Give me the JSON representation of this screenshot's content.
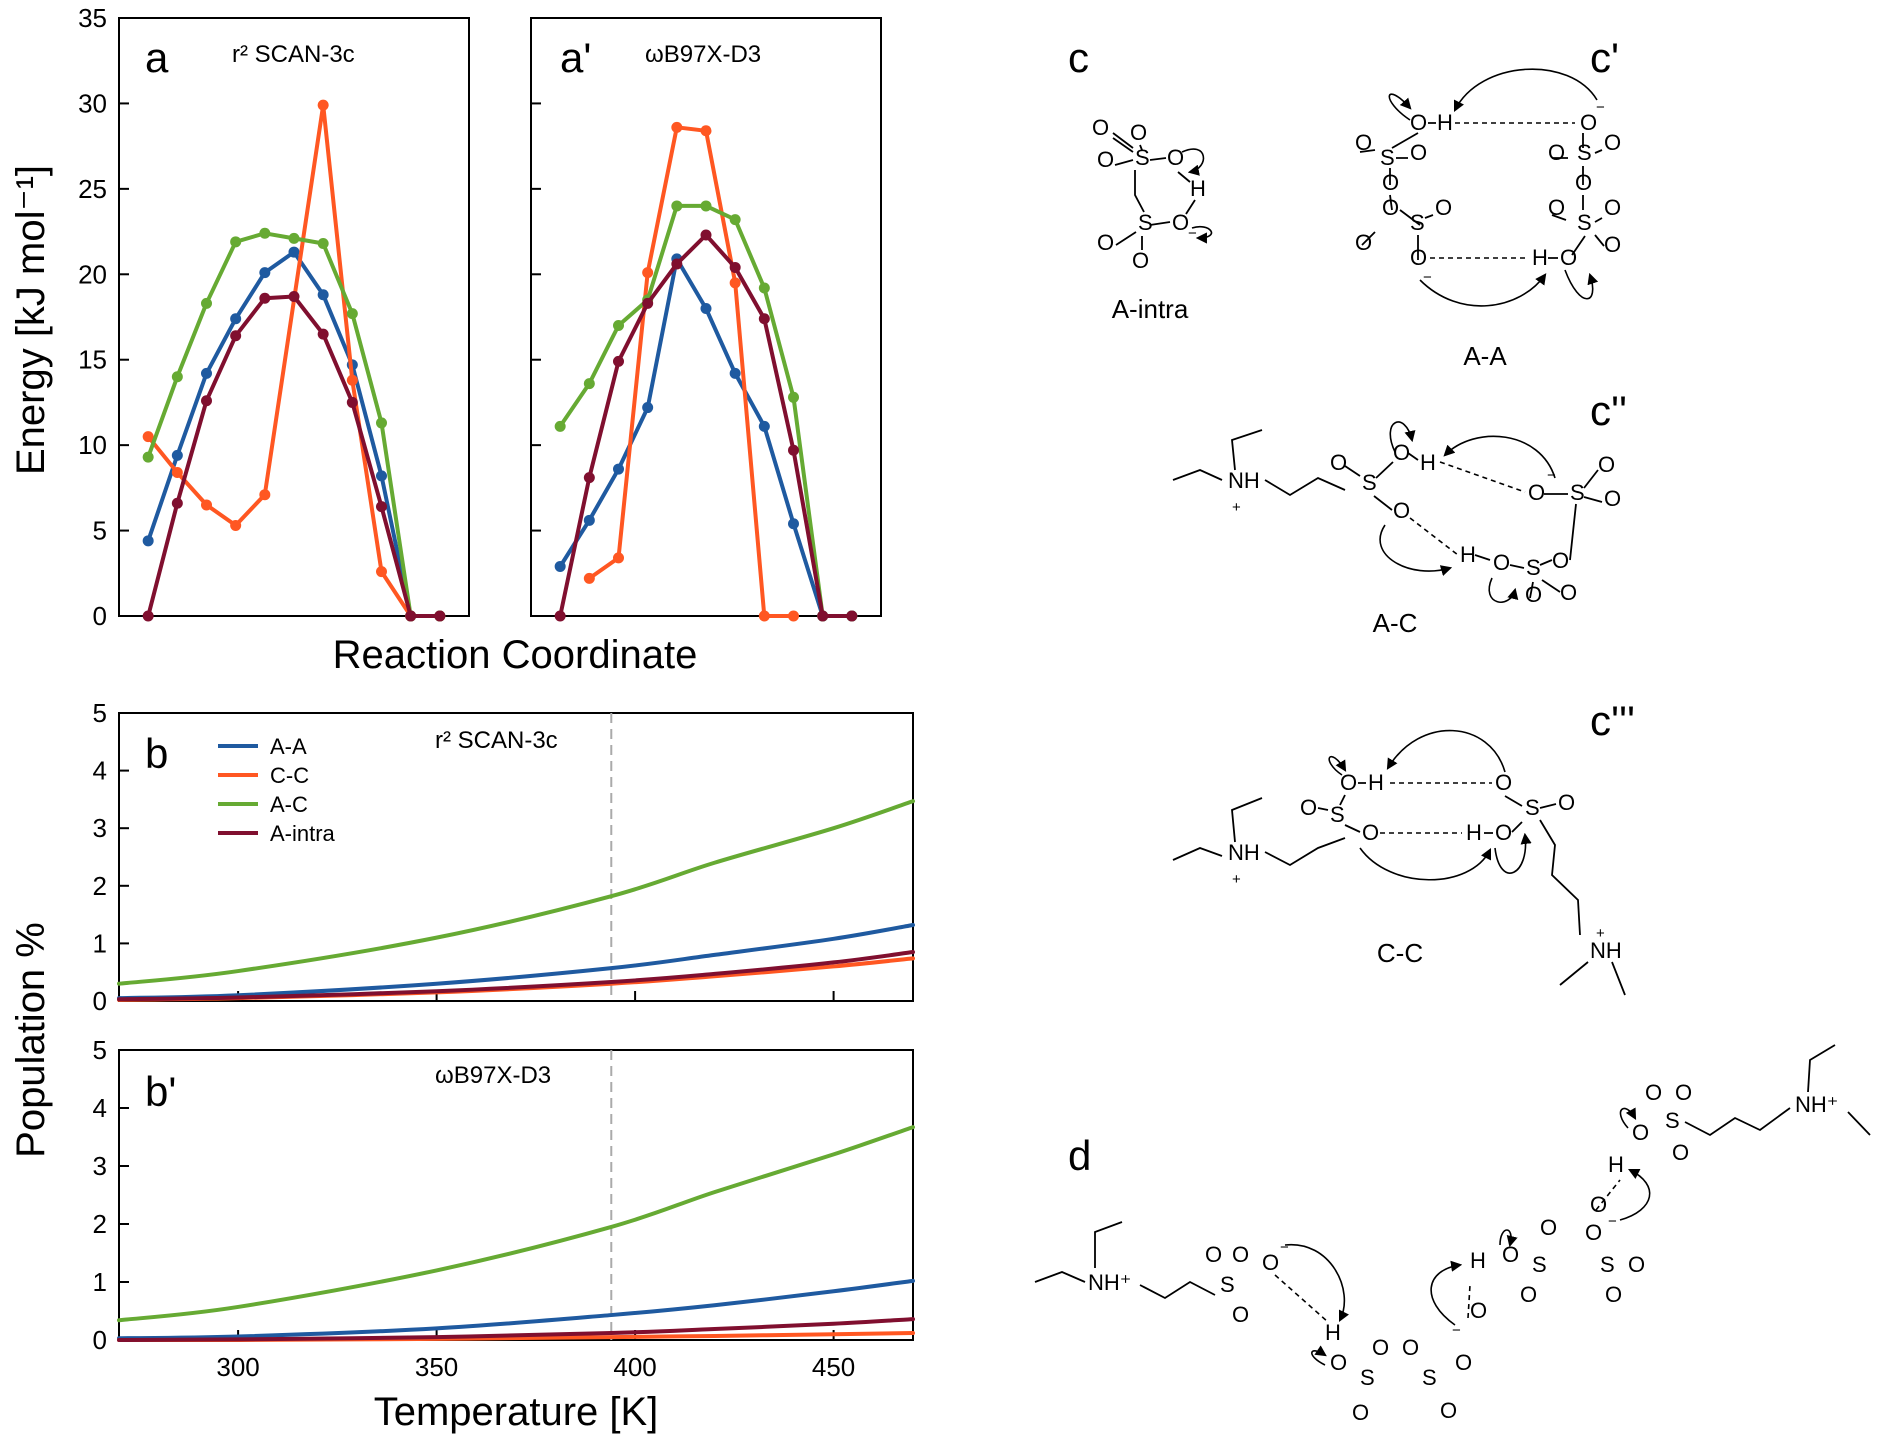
{
  "colors": {
    "A-A": "#1f5aa0",
    "C-C": "#ff5722",
    "A-C": "#66aa33",
    "A-intra": "#800f2f",
    "guide": "#aaaaaa"
  },
  "chart_data": [
    {
      "id": "a",
      "type": "line",
      "panel_label": "a",
      "method": "r² SCAN-3c",
      "xlabel": "Reaction Coordinate",
      "ylabel": "Energy [kJ mol⁻¹]",
      "ylim": [
        0,
        35
      ],
      "yticks": [
        0,
        5,
        10,
        15,
        20,
        25,
        30,
        35
      ],
      "xlim": [
        0,
        12
      ],
      "series": [
        {
          "key": "A-A",
          "x": [
            1,
            2,
            3,
            4,
            5,
            6,
            7,
            8,
            9,
            10,
            11
          ],
          "y": [
            4.4,
            9.4,
            14.2,
            17.4,
            20.1,
            21.3,
            18.8,
            14.7,
            8.2,
            0,
            0
          ]
        },
        {
          "key": "C-C",
          "x": [
            1,
            2,
            3,
            4,
            5,
            7,
            8,
            9,
            10,
            11
          ],
          "y": [
            10.5,
            8.4,
            6.5,
            5.3,
            7.1,
            29.9,
            13.8,
            2.6,
            0,
            0
          ]
        },
        {
          "key": "A-C",
          "x": [
            1,
            2,
            3,
            4,
            5,
            6,
            7,
            8,
            9,
            10,
            11
          ],
          "y": [
            9.3,
            14.0,
            18.3,
            21.9,
            22.4,
            22.1,
            21.8,
            17.7,
            11.3,
            0,
            0
          ]
        },
        {
          "key": "A-intra",
          "x": [
            1,
            2,
            3,
            4,
            5,
            6,
            7,
            8,
            9,
            10,
            11
          ],
          "y": [
            0,
            6.6,
            12.6,
            16.4,
            18.6,
            18.7,
            16.5,
            12.5,
            6.4,
            0,
            0
          ]
        }
      ]
    },
    {
      "id": "a-prime",
      "type": "line",
      "panel_label": "a'",
      "method": "ωB97X-D3",
      "ylim": [
        0,
        35
      ],
      "xlim": [
        0,
        12
      ],
      "series": [
        {
          "key": "A-A",
          "x": [
            1,
            2,
            3,
            4,
            5,
            6,
            7,
            8,
            9,
            10,
            11
          ],
          "y": [
            2.9,
            5.6,
            8.6,
            12.2,
            20.9,
            18.0,
            14.2,
            11.1,
            5.4,
            0,
            0
          ]
        },
        {
          "key": "C-C",
          "x": [
            2,
            3,
            4,
            5,
            6,
            7,
            8,
            9
          ],
          "y": [
            2.2,
            3.4,
            20.1,
            28.6,
            28.4,
            19.5,
            0,
            0
          ]
        },
        {
          "key": "A-C",
          "x": [
            1,
            2,
            3,
            4,
            5,
            6,
            7,
            8,
            9,
            10,
            11
          ],
          "y": [
            11.1,
            13.6,
            17.0,
            18.5,
            24.0,
            24.0,
            23.2,
            19.2,
            12.8,
            0,
            0
          ]
        },
        {
          "key": "A-intra",
          "x": [
            1,
            2,
            3,
            4,
            5,
            6,
            7,
            8,
            9,
            10,
            11
          ],
          "y": [
            0,
            8.1,
            14.9,
            18.3,
            20.6,
            22.3,
            20.4,
            17.4,
            9.7,
            0,
            0
          ]
        }
      ]
    },
    {
      "id": "b",
      "type": "line",
      "panel_label": "b",
      "method": "r² SCAN-3c",
      "ylabel": "Population %",
      "xlim": [
        270,
        470
      ],
      "ylim": [
        0,
        5
      ],
      "yticks": [
        0,
        1,
        2,
        3,
        4,
        5
      ],
      "guide_x": 394,
      "legend": [
        "A-A",
        "C-C",
        "A-C",
        "A-intra"
      ],
      "series": [
        {
          "key": "A-A",
          "x": [
            270,
            300,
            350,
            394,
            420,
            450,
            470
          ],
          "y": [
            0.05,
            0.1,
            0.3,
            0.57,
            0.8,
            1.08,
            1.32
          ]
        },
        {
          "key": "C-C",
          "x": [
            270,
            300,
            350,
            394,
            420,
            450,
            470
          ],
          "y": [
            0.02,
            0.05,
            0.15,
            0.3,
            0.43,
            0.6,
            0.74
          ]
        },
        {
          "key": "A-C",
          "x": [
            270,
            300,
            350,
            394,
            420,
            450,
            470
          ],
          "y": [
            0.3,
            0.52,
            1.1,
            1.82,
            2.4,
            3.0,
            3.47
          ]
        },
        {
          "key": "A-intra",
          "x": [
            270,
            300,
            350,
            394,
            420,
            450,
            470
          ],
          "y": [
            0.03,
            0.06,
            0.17,
            0.33,
            0.47,
            0.67,
            0.85
          ]
        }
      ]
    },
    {
      "id": "b-prime",
      "type": "line",
      "panel_label": "b'",
      "method": "ωB97X-D3",
      "xlabel": "Temperature [K]",
      "ylabel": "Population %",
      "xlim": [
        270,
        470
      ],
      "ylim": [
        0,
        5
      ],
      "yticks": [
        0,
        1,
        2,
        3,
        4,
        5
      ],
      "xticks": [
        300,
        350,
        400,
        450
      ],
      "guide_x": 394,
      "series": [
        {
          "key": "A-A",
          "x": [
            270,
            300,
            350,
            394,
            420,
            450,
            470
          ],
          "y": [
            0.03,
            0.06,
            0.2,
            0.43,
            0.6,
            0.84,
            1.02
          ]
        },
        {
          "key": "C-C",
          "x": [
            270,
            300,
            350,
            394,
            420,
            450,
            470
          ],
          "y": [
            0.0,
            0.0,
            0.02,
            0.05,
            0.07,
            0.1,
            0.12
          ]
        },
        {
          "key": "A-C",
          "x": [
            270,
            300,
            350,
            394,
            420,
            450,
            470
          ],
          "y": [
            0.34,
            0.57,
            1.2,
            1.95,
            2.55,
            3.2,
            3.67
          ]
        },
        {
          "key": "A-intra",
          "x": [
            270,
            300,
            350,
            394,
            420,
            450,
            470
          ],
          "y": [
            0.0,
            0.01,
            0.05,
            0.12,
            0.19,
            0.28,
            0.36
          ]
        }
      ]
    }
  ],
  "schemes": {
    "c": {
      "label": "c",
      "caption": "A-intra"
    },
    "c1": {
      "label": "c'",
      "caption": "A-A"
    },
    "c2": {
      "label": "c''",
      "caption": "A-C"
    },
    "c3": {
      "label": "c'''",
      "caption": "C-C"
    },
    "d": {
      "label": "d"
    },
    "atoms": {
      "S": "S",
      "O": "O",
      "H": "H",
      "NH": "NH",
      "NHp": "NH⁺",
      "plus": "+",
      "minus": "−"
    }
  }
}
